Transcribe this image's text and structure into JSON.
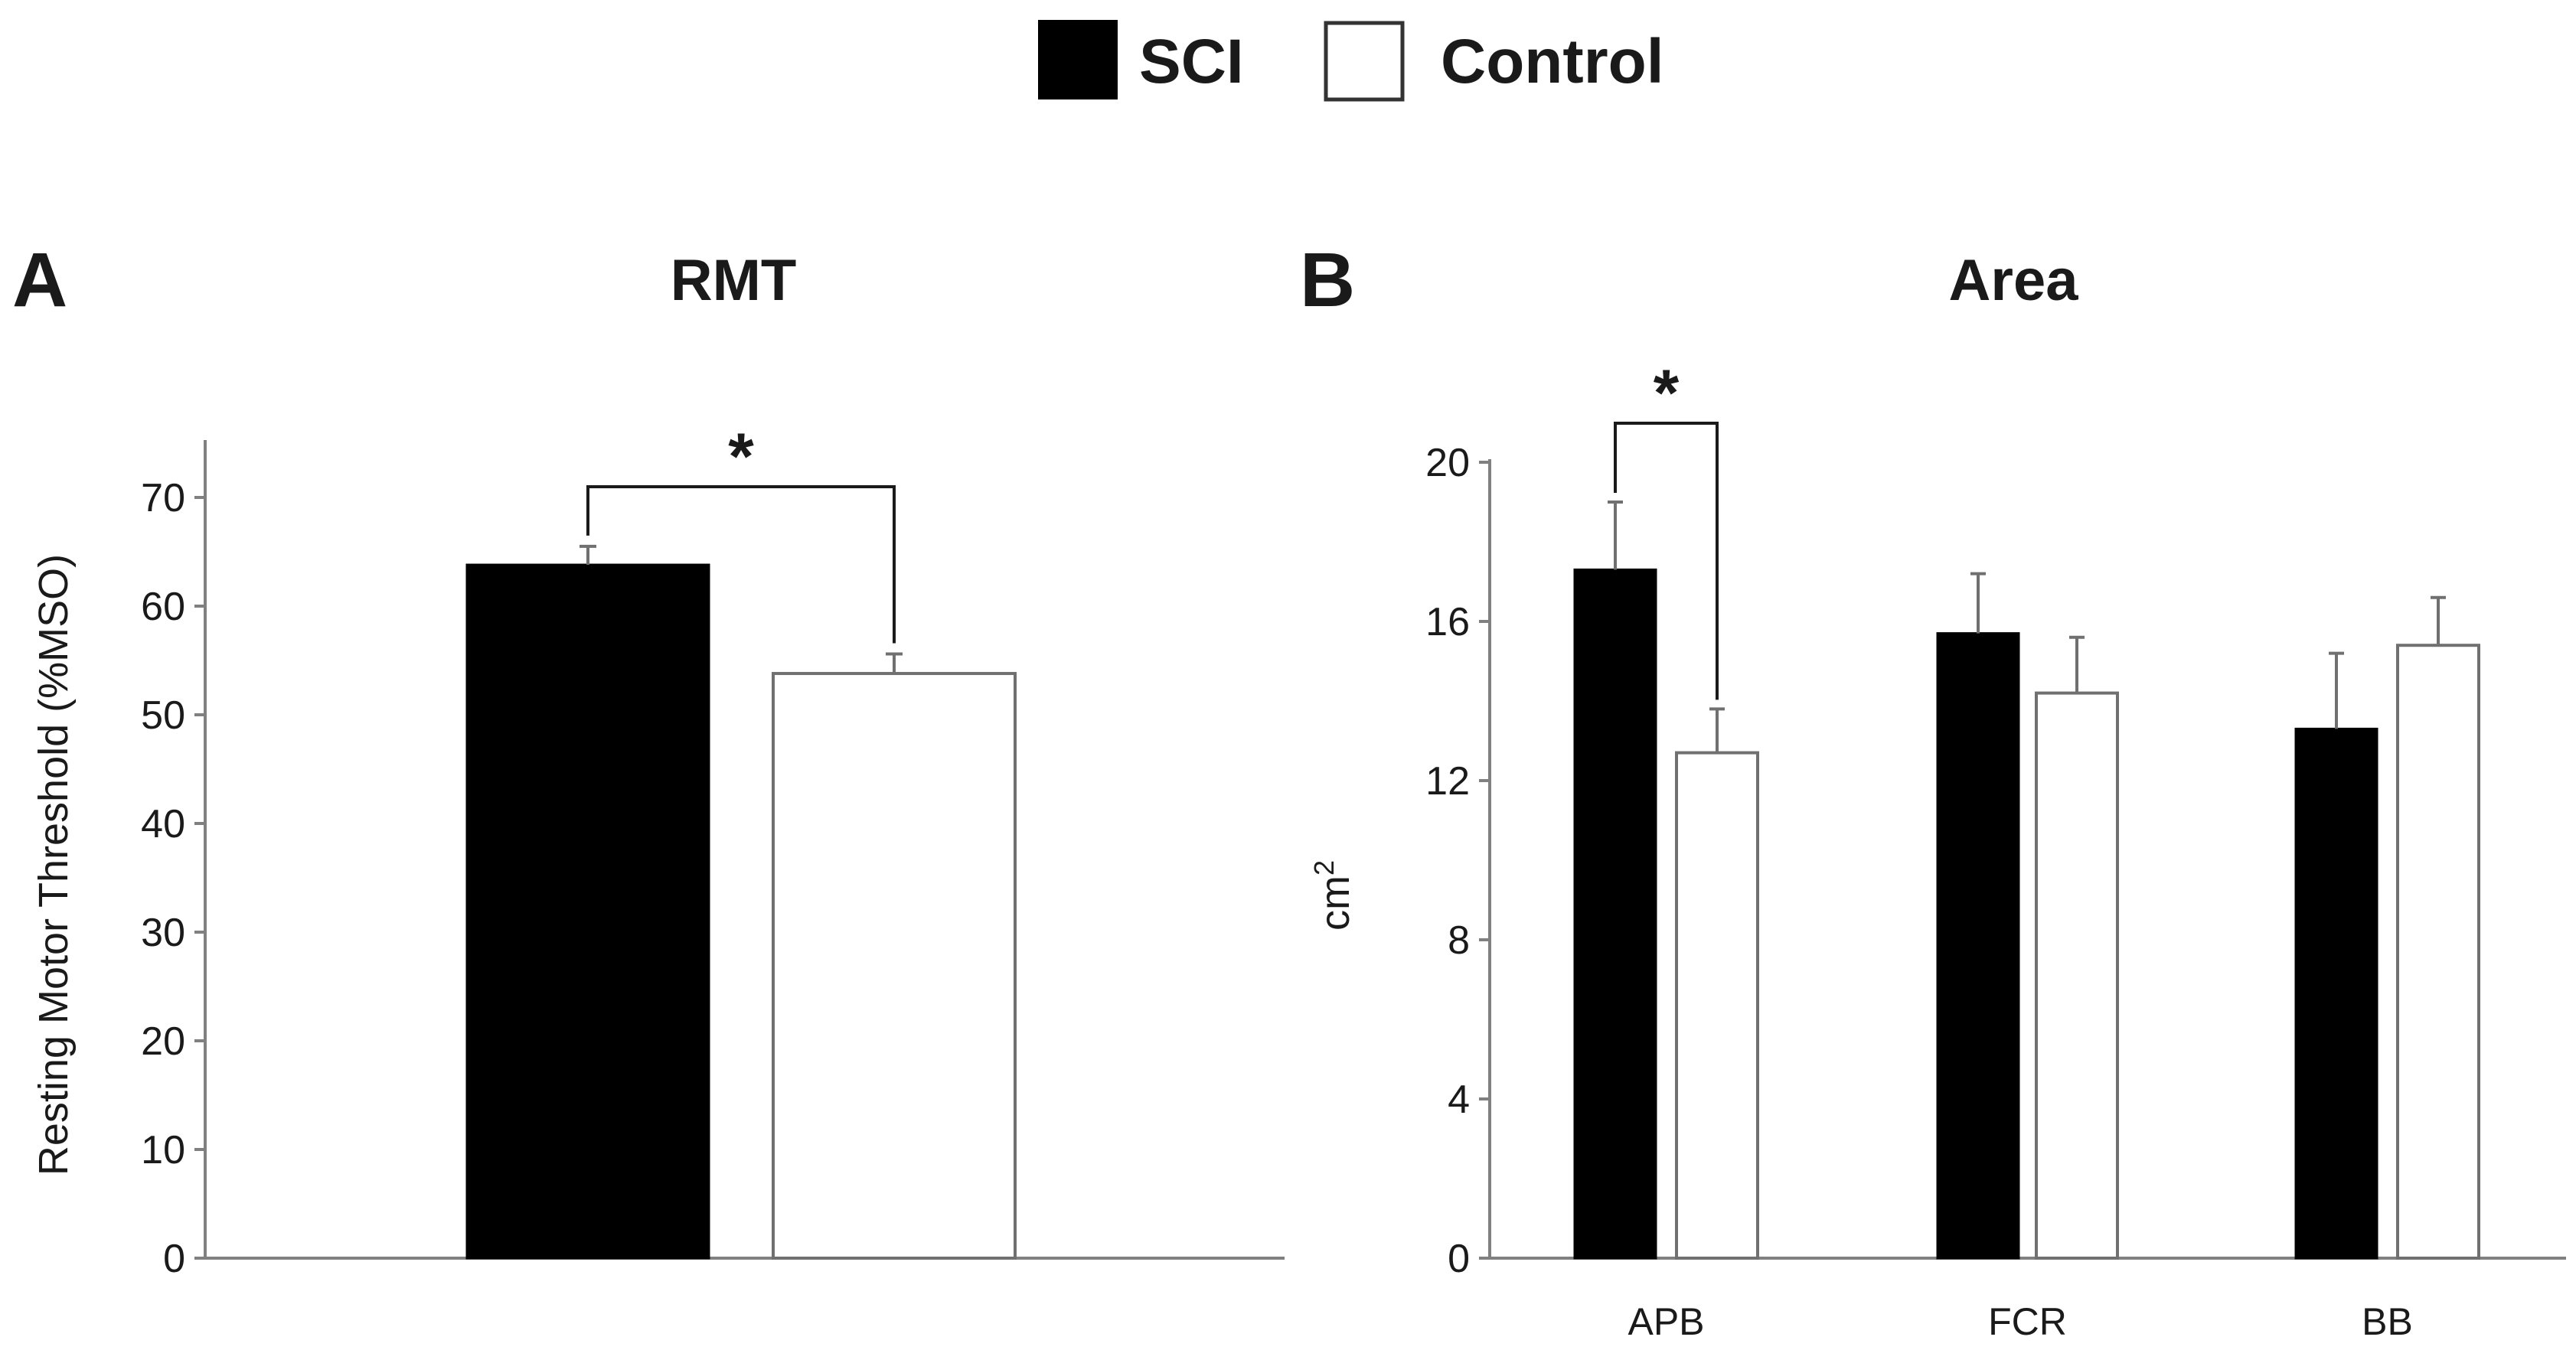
{
  "legend": [
    {
      "name": "SCI",
      "fill": "#000000"
    },
    {
      "name": "Control",
      "fill": "#ffffff"
    }
  ],
  "chart_data": [
    {
      "type": "bar",
      "panel": "A",
      "title": "RMT",
      "xlabel": "",
      "ylabel": "Resting Motor Threshold (%MSO)",
      "ylim": [
        0,
        75
      ],
      "yticks": [
        0,
        10,
        20,
        30,
        40,
        50,
        60,
        70
      ],
      "categories": [
        ""
      ],
      "series": [
        {
          "name": "SCI",
          "values": [
            63.8
          ],
          "errors": [
            1.7
          ]
        },
        {
          "name": "Control",
          "values": [
            53.8
          ],
          "errors": [
            1.8
          ]
        }
      ],
      "significance": [
        {
          "label": "*",
          "category_index": 0
        }
      ]
    },
    {
      "type": "bar",
      "panel": "B",
      "title": "Area",
      "xlabel": "",
      "ylabel": "cm",
      "ylabel_superscript": "2",
      "ylim": [
        0,
        20
      ],
      "yticks": [
        0,
        4,
        8,
        12,
        16,
        20
      ],
      "categories": [
        "APB",
        "FCR",
        "BB"
      ],
      "series": [
        {
          "name": "SCI",
          "values": [
            17.3,
            15.7,
            13.3
          ],
          "errors": [
            1.7,
            1.5,
            1.9
          ]
        },
        {
          "name": "Control",
          "values": [
            12.7,
            14.2,
            15.4
          ],
          "errors": [
            1.1,
            1.4,
            1.2
          ]
        }
      ],
      "significance": [
        {
          "label": "*",
          "category_index": 0
        }
      ]
    }
  ]
}
